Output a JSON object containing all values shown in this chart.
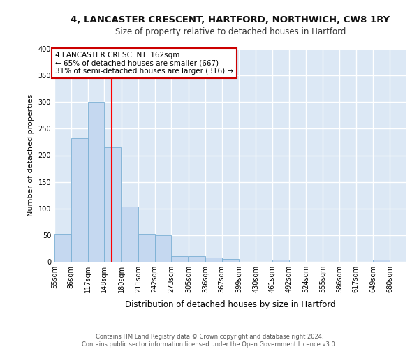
{
  "title1": "4, LANCASTER CRESCENT, HARTFORD, NORTHWICH, CW8 1RY",
  "title2": "Size of property relative to detached houses in Hartford",
  "xlabel": "Distribution of detached houses by size in Hartford",
  "ylabel": "Number of detached properties",
  "bins": [
    "55sqm",
    "86sqm",
    "117sqm",
    "148sqm",
    "180sqm",
    "211sqm",
    "242sqm",
    "273sqm",
    "305sqm",
    "336sqm",
    "367sqm",
    "399sqm",
    "430sqm",
    "461sqm",
    "492sqm",
    "524sqm",
    "555sqm",
    "586sqm",
    "617sqm",
    "649sqm",
    "680sqm"
  ],
  "bar_values": [
    52,
    232,
    300,
    215,
    103,
    52,
    50,
    10,
    10,
    8,
    5,
    0,
    0,
    4,
    0,
    0,
    0,
    0,
    0,
    4,
    0
  ],
  "bar_color": "#c5d8f0",
  "bar_edge_color": "#7aafd4",
  "property_line_x": 162,
  "bin_edges": [
    55,
    86,
    117,
    148,
    180,
    211,
    242,
    273,
    305,
    336,
    367,
    399,
    430,
    461,
    492,
    524,
    555,
    586,
    617,
    649,
    680
  ],
  "bin_width": 31,
  "annotation_line1": "4 LANCASTER CRESCENT: 162sqm",
  "annotation_line2": "← 65% of detached houses are smaller (667)",
  "annotation_line3": "31% of semi-detached houses are larger (316) →",
  "annotation_border_color": "#cc0000",
  "footer_line1": "Contains HM Land Registry data © Crown copyright and database right 2024.",
  "footer_line2": "Contains public sector information licensed under the Open Government Licence v3.0.",
  "fig_bg": "#ffffff",
  "axes_bg": "#dce8f5",
  "grid_color": "#ffffff",
  "ylim": [
    0,
    400
  ],
  "yticks": [
    0,
    50,
    100,
    150,
    200,
    250,
    300,
    350,
    400
  ],
  "title1_fontsize": 9.5,
  "title2_fontsize": 8.5,
  "ylabel_fontsize": 8,
  "xlabel_fontsize": 8.5,
  "tick_fontsize": 7,
  "annot_fontsize": 7.5,
  "footer_fontsize": 6.0
}
